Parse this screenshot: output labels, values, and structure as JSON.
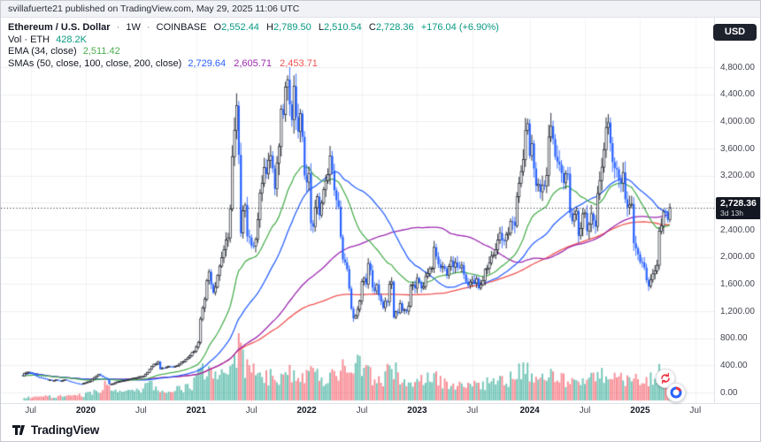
{
  "page": {
    "attribution": "svillafuerte21 published on TradingView.com, May 29, 2025 11:06 UTC",
    "currency_button": "USD"
  },
  "legend": {
    "symbol": "Ethereum / U.S. Dollar",
    "separator": "·",
    "interval": "1W",
    "exchange": "COINBASE",
    "ohlc": {
      "o_label": "O",
      "o": "2,552.44",
      "h_label": "H",
      "h": "2,789.50",
      "l_label": "L",
      "l": "2,510.54",
      "c_label": "C",
      "c": "2,728.36",
      "change": "+176.04 (+6.90%)"
    },
    "volume": {
      "label": "Vol · ETH",
      "value": "428.2K"
    },
    "ema": {
      "label": "EMA (34, close)",
      "value": "2,511.42"
    },
    "smas": {
      "label": "SMAs (50, close, 100, close, 200, close)",
      "values": [
        "2,729.64",
        "2,605.71",
        "2,453.71"
      ]
    }
  },
  "price_scale": {
    "ticks": [
      "4,800.00",
      "4,400.00",
      "4,000.00",
      "3,600.00",
      "3,200.00",
      "2,800.00",
      "2,400.00",
      "2,000.00",
      "1,600.00",
      "1,200.00",
      "800.00",
      "400.00",
      "0.00"
    ],
    "tick_values": [
      4800,
      4400,
      4000,
      3600,
      3200,
      2800,
      2400,
      2000,
      1600,
      1200,
      800,
      400,
      0
    ],
    "last_price": "2,728.36",
    "last_price_value": 2728.36,
    "countdown": "3d 13h"
  },
  "time_scale": {
    "labels": [
      {
        "text": "Jul",
        "week": 4,
        "year": false
      },
      {
        "text": "2020",
        "week": 30,
        "year": true
      },
      {
        "text": "Jul",
        "week": 56,
        "year": false
      },
      {
        "text": "2021",
        "week": 82,
        "year": true
      },
      {
        "text": "Jul",
        "week": 108,
        "year": false
      },
      {
        "text": "2022",
        "week": 134,
        "year": true
      },
      {
        "text": "Jul",
        "week": 160,
        "year": false
      },
      {
        "text": "2023",
        "week": 186,
        "year": true
      },
      {
        "text": "Jul",
        "week": 212,
        "year": false
      },
      {
        "text": "2024",
        "week": 239,
        "year": true
      },
      {
        "text": "Jul",
        "week": 265,
        "year": false
      },
      {
        "text": "2025",
        "week": 291,
        "year": true
      },
      {
        "text": "Jul",
        "week": 317,
        "year": false
      }
    ]
  },
  "footer": {
    "brand": "TradingView"
  },
  "chart_data": {
    "type": "candlestick",
    "title": "Ethereum / U.S. Dollar",
    "symbol": "ETHUSD",
    "exchange": "COINBASE",
    "interval": "1W",
    "y_axis_ticks": [
      0,
      400,
      800,
      1200,
      1600,
      2000,
      2400,
      2800,
      3200,
      3600,
      4000,
      4400,
      4800
    ],
    "x_axis_labels": [
      "Jul",
      "2020",
      "Jul",
      "2021",
      "Jul",
      "2022",
      "Jul",
      "2023",
      "Jul",
      "2024",
      "Jul",
      "2025",
      "Jul"
    ],
    "current_bar": {
      "open": 2552.44,
      "high": 2789.5,
      "low": 2510.54,
      "close": 2728.36,
      "change": 176.04,
      "change_pct": 6.9,
      "volume_text": "428.2K"
    },
    "indicators": [
      {
        "name": "EMA 34",
        "value": 2511.42,
        "color": "#4caf50"
      },
      {
        "name": "SMA 50",
        "value": 2729.64,
        "color": "#2962ff"
      },
      {
        "name": "SMA 100",
        "value": 2605.71,
        "color": "#9c27b0"
      },
      {
        "name": "SMA 200",
        "value": 2453.71,
        "color": "#ef5350"
      }
    ],
    "colors": {
      "up_body": "#ffffff",
      "up_border": "#131722",
      "down": "#2962ff",
      "vol_up": "rgba(8,153,129,0.55)",
      "vol_down": "rgba(242,54,69,0.55)",
      "grid": "#eceff2",
      "vgrid": "rgba(19,23,34,0.05)",
      "price_line": "#131722"
    },
    "weeks_total": 320,
    "closes_keypoints": [
      [
        0,
        250
      ],
      [
        2,
        305
      ],
      [
        4,
        295
      ],
      [
        6,
        250
      ],
      [
        8,
        225
      ],
      [
        10,
        205
      ],
      [
        12,
        190
      ],
      [
        14,
        175
      ],
      [
        16,
        183
      ],
      [
        18,
        170
      ],
      [
        20,
        188
      ],
      [
        22,
        165
      ],
      [
        24,
        150
      ],
      [
        26,
        132
      ],
      [
        28,
        128
      ],
      [
        30,
        143
      ],
      [
        32,
        168
      ],
      [
        34,
        225
      ],
      [
        36,
        262
      ],
      [
        38,
        228
      ],
      [
        40,
        195
      ],
      [
        41,
        122
      ],
      [
        43,
        133
      ],
      [
        45,
        158
      ],
      [
        47,
        172
      ],
      [
        49,
        188
      ],
      [
        51,
        203
      ],
      [
        53,
        212
      ],
      [
        55,
        228
      ],
      [
        57,
        242
      ],
      [
        59,
        302
      ],
      [
        61,
        392
      ],
      [
        63,
        430
      ],
      [
        64,
        465
      ],
      [
        65,
        355
      ],
      [
        67,
        366
      ],
      [
        69,
        388
      ],
      [
        71,
        380
      ],
      [
        73,
        406
      ],
      [
        75,
        446
      ],
      [
        77,
        486
      ],
      [
        79,
        556
      ],
      [
        81,
        612
      ],
      [
        82,
        686
      ],
      [
        83,
        748
      ],
      [
        84,
        1105
      ],
      [
        85,
        1255
      ],
      [
        86,
        1380
      ],
      [
        87,
        1662
      ],
      [
        88,
        1782
      ],
      [
        89,
        1562
      ],
      [
        90,
        1452
      ],
      [
        91,
        1582
      ],
      [
        92,
        1722
      ],
      [
        93,
        1842
      ],
      [
        95,
        2082
      ],
      [
        96,
        2202
      ],
      [
        97,
        2322
      ],
      [
        98,
        2772
      ],
      [
        99,
        3482
      ],
      [
        100,
        3912
      ],
      [
        101,
        4142
      ],
      [
        102,
        3582
      ],
      [
        103,
        2392
      ],
      [
        104,
        2682
      ],
      [
        105,
        2712
      ],
      [
        106,
        2322
      ],
      [
        107,
        2282
      ],
      [
        108,
        2142
      ],
      [
        109,
        2112
      ],
      [
        110,
        2292
      ],
      [
        111,
        2532
      ],
      [
        112,
        3012
      ],
      [
        113,
        3162
      ],
      [
        114,
        3322
      ],
      [
        115,
        3232
      ],
      [
        116,
        3432
      ],
      [
        117,
        3422
      ],
      [
        118,
        3322
      ],
      [
        119,
        2932
      ],
      [
        120,
        3422
      ],
      [
        121,
        3582
      ],
      [
        122,
        4082
      ],
      [
        123,
        4182
      ],
      [
        124,
        4622
      ],
      [
        125,
        4562
      ],
      [
        126,
        4292
      ],
      [
        127,
        4082
      ],
      [
        128,
        4422
      ],
      [
        129,
        4112
      ],
      [
        130,
        3862
      ],
      [
        131,
        4052
      ],
      [
        132,
        3722
      ],
      [
        133,
        3282
      ],
      [
        134,
        3092
      ],
      [
        135,
        3182
      ],
      [
        136,
        2542
      ],
      [
        137,
        2412
      ],
      [
        138,
        2682
      ],
      [
        139,
        2932
      ],
      [
        140,
        2622
      ],
      [
        141,
        2762
      ],
      [
        142,
        2952
      ],
      [
        143,
        3072
      ],
      [
        144,
        3282
      ],
      [
        145,
        3452
      ],
      [
        146,
        3222
      ],
      [
        147,
        2922
      ],
      [
        148,
        2822
      ],
      [
        149,
        2742
      ],
      [
        150,
        2252
      ],
      [
        151,
        2012
      ],
      [
        152,
        1962
      ],
      [
        153,
        1802
      ],
      [
        154,
        1532
      ],
      [
        155,
        1212
      ],
      [
        156,
        1072
      ],
      [
        157,
        1132
      ],
      [
        158,
        1242
      ],
      [
        159,
        1362
      ],
      [
        160,
        1602
      ],
      [
        161,
        1682
      ],
      [
        162,
        1632
      ],
      [
        163,
        1902
      ],
      [
        164,
        1832
      ],
      [
        165,
        1552
      ],
      [
        166,
        1482
      ],
      [
        167,
        1572
      ],
      [
        168,
        1432
      ],
      [
        169,
        1332
      ],
      [
        170,
        1282
      ],
      [
        171,
        1332
      ],
      [
        172,
        1312
      ],
      [
        173,
        1572
      ],
      [
        174,
        1632
      ],
      [
        175,
        1102
      ],
      [
        176,
        1212
      ],
      [
        177,
        1182
      ],
      [
        178,
        1282
      ],
      [
        179,
        1222
      ],
      [
        180,
        1192
      ],
      [
        181,
        1202
      ],
      [
        182,
        1262
      ],
      [
        183,
        1552
      ],
      [
        184,
        1632
      ],
      [
        185,
        1572
      ],
      [
        186,
        1652
      ],
      [
        187,
        1612
      ],
      [
        188,
        1542
      ],
      [
        189,
        1592
      ],
      [
        190,
        1702
      ],
      [
        191,
        1782
      ],
      [
        192,
        1822
      ],
      [
        193,
        1872
      ],
      [
        194,
        2092
      ],
      [
        195,
        1992
      ],
      [
        196,
        1912
      ],
      [
        197,
        1812
      ],
      [
        198,
        1892
      ],
      [
        199,
        1832
      ],
      [
        200,
        1722
      ],
      [
        201,
        1892
      ],
      [
        202,
        1942
      ],
      [
        203,
        1862
      ],
      [
        204,
        1882
      ],
      [
        205,
        1832
      ],
      [
        206,
        1862
      ],
      [
        207,
        1842
      ],
      [
        208,
        1702
      ],
      [
        209,
        1642
      ],
      [
        210,
        1602
      ],
      [
        211,
        1652
      ],
      [
        212,
        1632
      ],
      [
        213,
        1592
      ],
      [
        214,
        1672
      ],
      [
        215,
        1562
      ],
      [
        216,
        1552
      ],
      [
        217,
        1682
      ],
      [
        218,
        1782
      ],
      [
        219,
        1842
      ],
      [
        220,
        1902
      ],
      [
        221,
        2012
      ],
      [
        222,
        2052
      ],
      [
        223,
        2082
      ],
      [
        224,
        2252
      ],
      [
        225,
        2352
      ],
      [
        226,
        2292
      ],
      [
        227,
        2242
      ],
      [
        228,
        2292
      ],
      [
        229,
        2362
      ],
      [
        230,
        2482
      ],
      [
        231,
        2512
      ],
      [
        232,
        2432
      ],
      [
        233,
        2902
      ],
      [
        234,
        3112
      ],
      [
        235,
        3242
      ],
      [
        236,
        3482
      ],
      [
        237,
        3882
      ],
      [
        238,
        3942
      ],
      [
        239,
        3512
      ],
      [
        240,
        3642
      ],
      [
        241,
        3272
      ],
      [
        242,
        3052
      ],
      [
        243,
        3132
      ],
      [
        244,
        2982
      ],
      [
        245,
        3082
      ],
      [
        246,
        3012
      ],
      [
        247,
        3132
      ],
      [
        248,
        3762
      ],
      [
        249,
        3912
      ],
      [
        250,
        3692
      ],
      [
        251,
        3512
      ],
      [
        252,
        3382
      ],
      [
        253,
        3442
      ],
      [
        254,
        3162
      ],
      [
        255,
        3022
      ],
      [
        256,
        3172
      ],
      [
        257,
        3252
      ],
      [
        258,
        2692
      ],
      [
        259,
        2552
      ],
      [
        260,
        2612
      ],
      [
        261,
        2742
      ],
      [
        262,
        2302
      ],
      [
        263,
        2362
      ],
      [
        264,
        2582
      ],
      [
        265,
        2652
      ],
      [
        266,
        2442
      ],
      [
        267,
        2512
      ],
      [
        268,
        2622
      ],
      [
        269,
        2522
      ],
      [
        270,
        2462
      ],
      [
        271,
        2972
      ],
      [
        272,
        3122
      ],
      [
        273,
        3362
      ],
      [
        274,
        3582
      ],
      [
        275,
        3912
      ],
      [
        276,
        3992
      ],
      [
        277,
        3622
      ],
      [
        278,
        3412
      ],
      [
        279,
        3352
      ],
      [
        280,
        3312
      ],
      [
        281,
        3202
      ],
      [
        282,
        3112
      ],
      [
        283,
        3282
      ],
      [
        284,
        2872
      ],
      [
        285,
        2682
      ],
      [
        286,
        2762
      ],
      [
        287,
        2802
      ],
      [
        288,
        2232
      ],
      [
        289,
        2142
      ],
      [
        290,
        2022
      ],
      [
        291,
        1922
      ],
      [
        292,
        1882
      ],
      [
        293,
        1822
      ],
      [
        294,
        1652
      ],
      [
        295,
        1582
      ],
      [
        296,
        1622
      ],
      [
        297,
        1792
      ],
      [
        298,
        1812
      ],
      [
        299,
        1842
      ],
      [
        300,
        2422
      ],
      [
        301,
        2482
      ],
      [
        302,
        2612
      ],
      [
        303,
        2652
      ],
      [
        304,
        2552.44
      ],
      [
        305,
        2728.36
      ]
    ],
    "volume_keypoints": [
      [
        0,
        0.06
      ],
      [
        20,
        0.07
      ],
      [
        30,
        0.1
      ],
      [
        36,
        0.16
      ],
      [
        41,
        0.3
      ],
      [
        45,
        0.14
      ],
      [
        55,
        0.15
      ],
      [
        60,
        0.26
      ],
      [
        64,
        0.22
      ],
      [
        70,
        0.16
      ],
      [
        80,
        0.26
      ],
      [
        84,
        0.46
      ],
      [
        88,
        0.48
      ],
      [
        92,
        0.36
      ],
      [
        97,
        0.44
      ],
      [
        100,
        0.6
      ],
      [
        102,
        0.88
      ],
      [
        103,
        1.0
      ],
      [
        105,
        0.6
      ],
      [
        108,
        0.52
      ],
      [
        112,
        0.48
      ],
      [
        116,
        0.4
      ],
      [
        120,
        0.42
      ],
      [
        124,
        0.48
      ],
      [
        128,
        0.4
      ],
      [
        134,
        0.44
      ],
      [
        136,
        0.52
      ],
      [
        140,
        0.4
      ],
      [
        144,
        0.36
      ],
      [
        150,
        0.56
      ],
      [
        153,
        0.48
      ],
      [
        156,
        0.76
      ],
      [
        158,
        0.6
      ],
      [
        162,
        0.44
      ],
      [
        166,
        0.4
      ],
      [
        170,
        0.36
      ],
      [
        174,
        0.6
      ],
      [
        176,
        0.52
      ],
      [
        180,
        0.32
      ],
      [
        184,
        0.38
      ],
      [
        188,
        0.32
      ],
      [
        194,
        0.4
      ],
      [
        198,
        0.3
      ],
      [
        204,
        0.26
      ],
      [
        210,
        0.26
      ],
      [
        214,
        0.24
      ],
      [
        218,
        0.28
      ],
      [
        224,
        0.34
      ],
      [
        228,
        0.32
      ],
      [
        233,
        0.5
      ],
      [
        237,
        0.56
      ],
      [
        240,
        0.44
      ],
      [
        244,
        0.36
      ],
      [
        248,
        0.42
      ],
      [
        252,
        0.32
      ],
      [
        258,
        0.4
      ],
      [
        262,
        0.38
      ],
      [
        266,
        0.3
      ],
      [
        271,
        0.44
      ],
      [
        275,
        0.5
      ],
      [
        278,
        0.38
      ],
      [
        282,
        0.34
      ],
      [
        285,
        0.36
      ],
      [
        288,
        0.42
      ],
      [
        291,
        0.32
      ],
      [
        295,
        0.38
      ],
      [
        300,
        0.46
      ],
      [
        303,
        0.34
      ],
      [
        305,
        0.3
      ]
    ]
  }
}
